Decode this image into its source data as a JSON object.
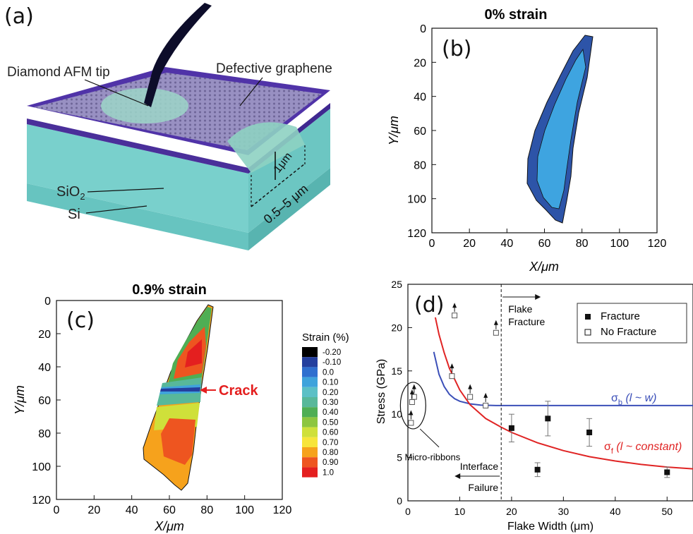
{
  "panel_a": {
    "label": "(a)",
    "annotations": {
      "tip": "Diamond AFM tip",
      "graphene": "Defective graphene",
      "sio2": "SiO",
      "sio2_sub": "2",
      "si": "Si",
      "depth": "1μm",
      "width": "0.5–5 μm"
    },
    "colors": {
      "graphene_top": "#8f87b8",
      "edge": "#4a2f9a",
      "substrate": "#79d0cc",
      "tip": "#0d0d2a"
    }
  },
  "panel_b": {
    "label": "(b)",
    "title": "0% strain",
    "xlabel": "X/μm",
    "ylabel": "Y/μm",
    "xticks": [
      "0",
      "20",
      "40",
      "60",
      "80",
      "100",
      "120"
    ],
    "yticks": [
      "0",
      "20",
      "40",
      "60",
      "80",
      "100",
      "120"
    ],
    "colors": {
      "outer": "#2d54a8",
      "inner": "#3ea4e0"
    }
  },
  "panel_c": {
    "label": "(c)",
    "title": "0.9% strain",
    "xlabel": "X/μm",
    "ylabel": "Y/μm",
    "xticks": [
      "0",
      "20",
      "40",
      "60",
      "80",
      "100",
      "120"
    ],
    "yticks": [
      "0",
      "20",
      "40",
      "60",
      "80",
      "100",
      "120"
    ],
    "crack_label": "Crack",
    "colorbar_title": "Strain (%)",
    "colorbar": [
      {
        "label": "-0.20",
        "color": "#000000"
      },
      {
        "label": "-0.10",
        "color": "#243f9e"
      },
      {
        "label": "0.0",
        "color": "#2f6fcf"
      },
      {
        "label": "0.10",
        "color": "#3fa3dc"
      },
      {
        "label": "0.20",
        "color": "#5cc0c6"
      },
      {
        "label": "0.30",
        "color": "#58b89a"
      },
      {
        "label": "0.40",
        "color": "#4fae54"
      },
      {
        "label": "0.50",
        "color": "#8dc63f"
      },
      {
        "label": "0.60",
        "color": "#cfe03a"
      },
      {
        "label": "0.70",
        "color": "#f7e53a"
      },
      {
        "label": "0.80",
        "color": "#f6a21c"
      },
      {
        "label": "0.90",
        "color": "#ee5520"
      },
      {
        "label": "1.0",
        "color": "#e41f1f"
      }
    ]
  },
  "chart_data": [
    {
      "type": "line",
      "panel": "(d)",
      "xlabel": "Flake Width (μm)",
      "ylabel": "Stress (GPa)",
      "xlim": [
        0,
        55
      ],
      "ylim": [
        0,
        25
      ],
      "xticks": [
        0,
        10,
        20,
        30,
        40,
        50
      ],
      "yticks": [
        0,
        5,
        10,
        15,
        20,
        25
      ],
      "legend": {
        "placement": "top-right",
        "entries": [
          "Fracture",
          "No Fracture"
        ]
      },
      "series": [
        {
          "name": "Fracture",
          "marker": "filled-square",
          "points": [
            {
              "x": 20,
              "y": 8.4,
              "err": 1.6
            },
            {
              "x": 25,
              "y": 3.6,
              "err": 0.8
            },
            {
              "x": 27,
              "y": 9.5,
              "err": 2.0
            },
            {
              "x": 35,
              "y": 7.9,
              "err": 1.6
            },
            {
              "x": 50,
              "y": 3.3,
              "err": 0.6
            }
          ]
        },
        {
          "name": "No Fracture",
          "marker": "open-square",
          "arrow_up": true,
          "points": [
            {
              "x": 9,
              "y": 21.4
            },
            {
              "x": 17,
              "y": 19.4
            },
            {
              "x": 8.5,
              "y": 14.4
            },
            {
              "x": 12,
              "y": 12.0
            },
            {
              "x": 15,
              "y": 11.0
            },
            {
              "x": 1.2,
              "y": 12.0
            },
            {
              "x": 0.8,
              "y": 11.4
            },
            {
              "x": 0.6,
              "y": 9.0
            }
          ]
        }
      ],
      "curves": [
        {
          "label_symbol": "σ",
          "label_sub": "b",
          "label_rest": " (l ~ w)",
          "color": "#3b4fb8",
          "x": [
            5,
            6,
            7,
            8,
            9,
            10,
            12,
            14,
            17,
            20,
            25,
            30,
            40,
            50,
            55
          ],
          "y": [
            17.2,
            14.6,
            13.2,
            12.3,
            11.8,
            11.5,
            11.2,
            11.05,
            11.0,
            11.0,
            11.0,
            11.0,
            11.0,
            11.0,
            11.0
          ]
        },
        {
          "label_symbol": "σ",
          "label_sub": "f",
          "label_rest": " (l ~ constant)",
          "color": "#e02424",
          "x": [
            5,
            6,
            7,
            8,
            10,
            12,
            15,
            18,
            20,
            25,
            30,
            35,
            40,
            45,
            50,
            55
          ],
          "y": [
            22.0,
            19.2,
            17.1,
            15.3,
            12.8,
            11.1,
            9.5,
            8.5,
            7.9,
            6.7,
            5.8,
            5.1,
            4.6,
            4.2,
            3.9,
            3.7
          ]
        }
      ],
      "annotations": {
        "divider_x": 18,
        "flake": [
          "Flake",
          "Fracture"
        ],
        "interface": [
          "Interface",
          "Failure"
        ],
        "micro": "Micro-ribbons"
      }
    }
  ]
}
